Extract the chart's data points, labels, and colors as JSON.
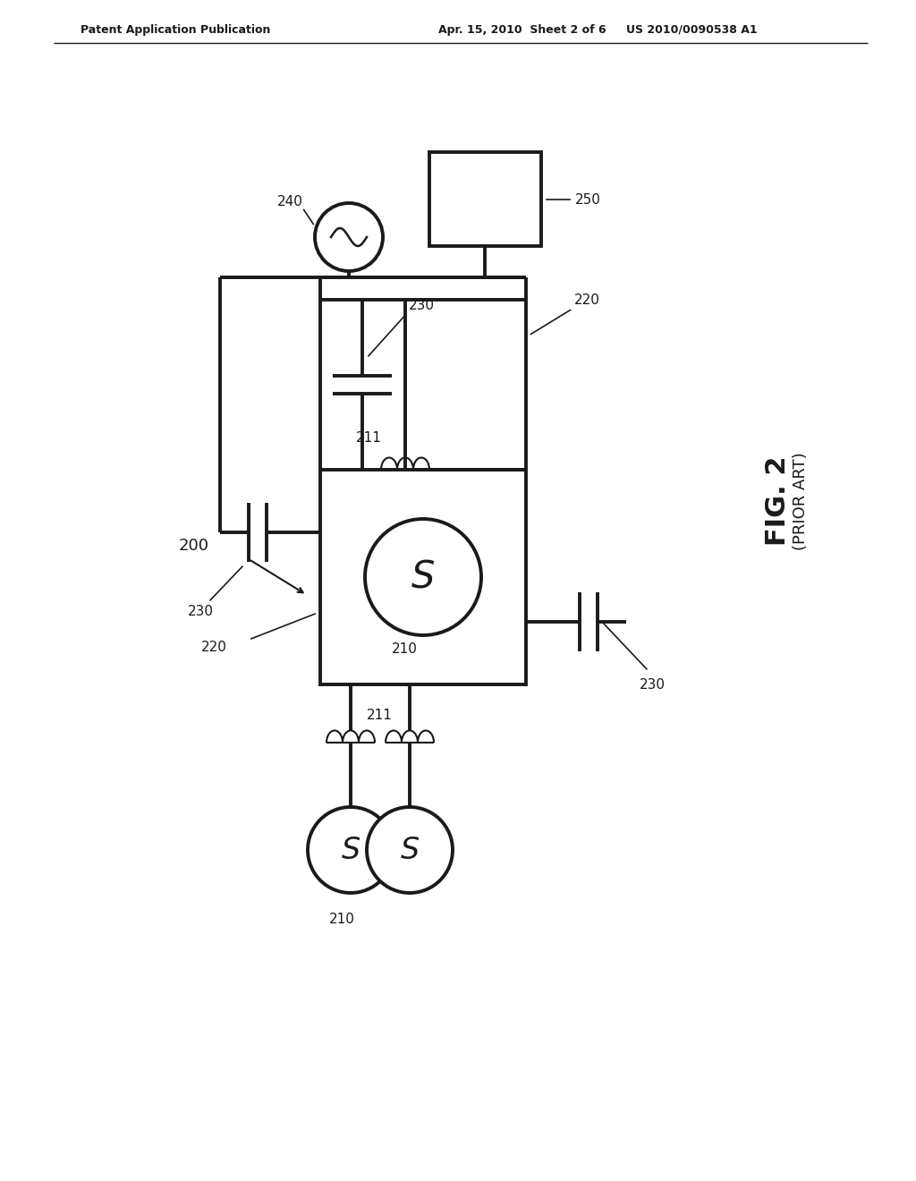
{
  "bg_color": "#ffffff",
  "line_color": "#1a1a1a",
  "text_color": "#1a1a1a",
  "header_left": "Patent Application Publication",
  "header_mid": "Apr. 15, 2010  Sheet 2 of 6",
  "header_right": "US 2010/0090538 A1",
  "fig_label": "FIG. 2",
  "fig_sublabel": "(PRIOR ART)",
  "ref_200": "200",
  "ref_210": "210",
  "ref_211": "211",
  "ref_220": "220",
  "ref_230": "230",
  "ref_240": "240",
  "ref_250": "250"
}
